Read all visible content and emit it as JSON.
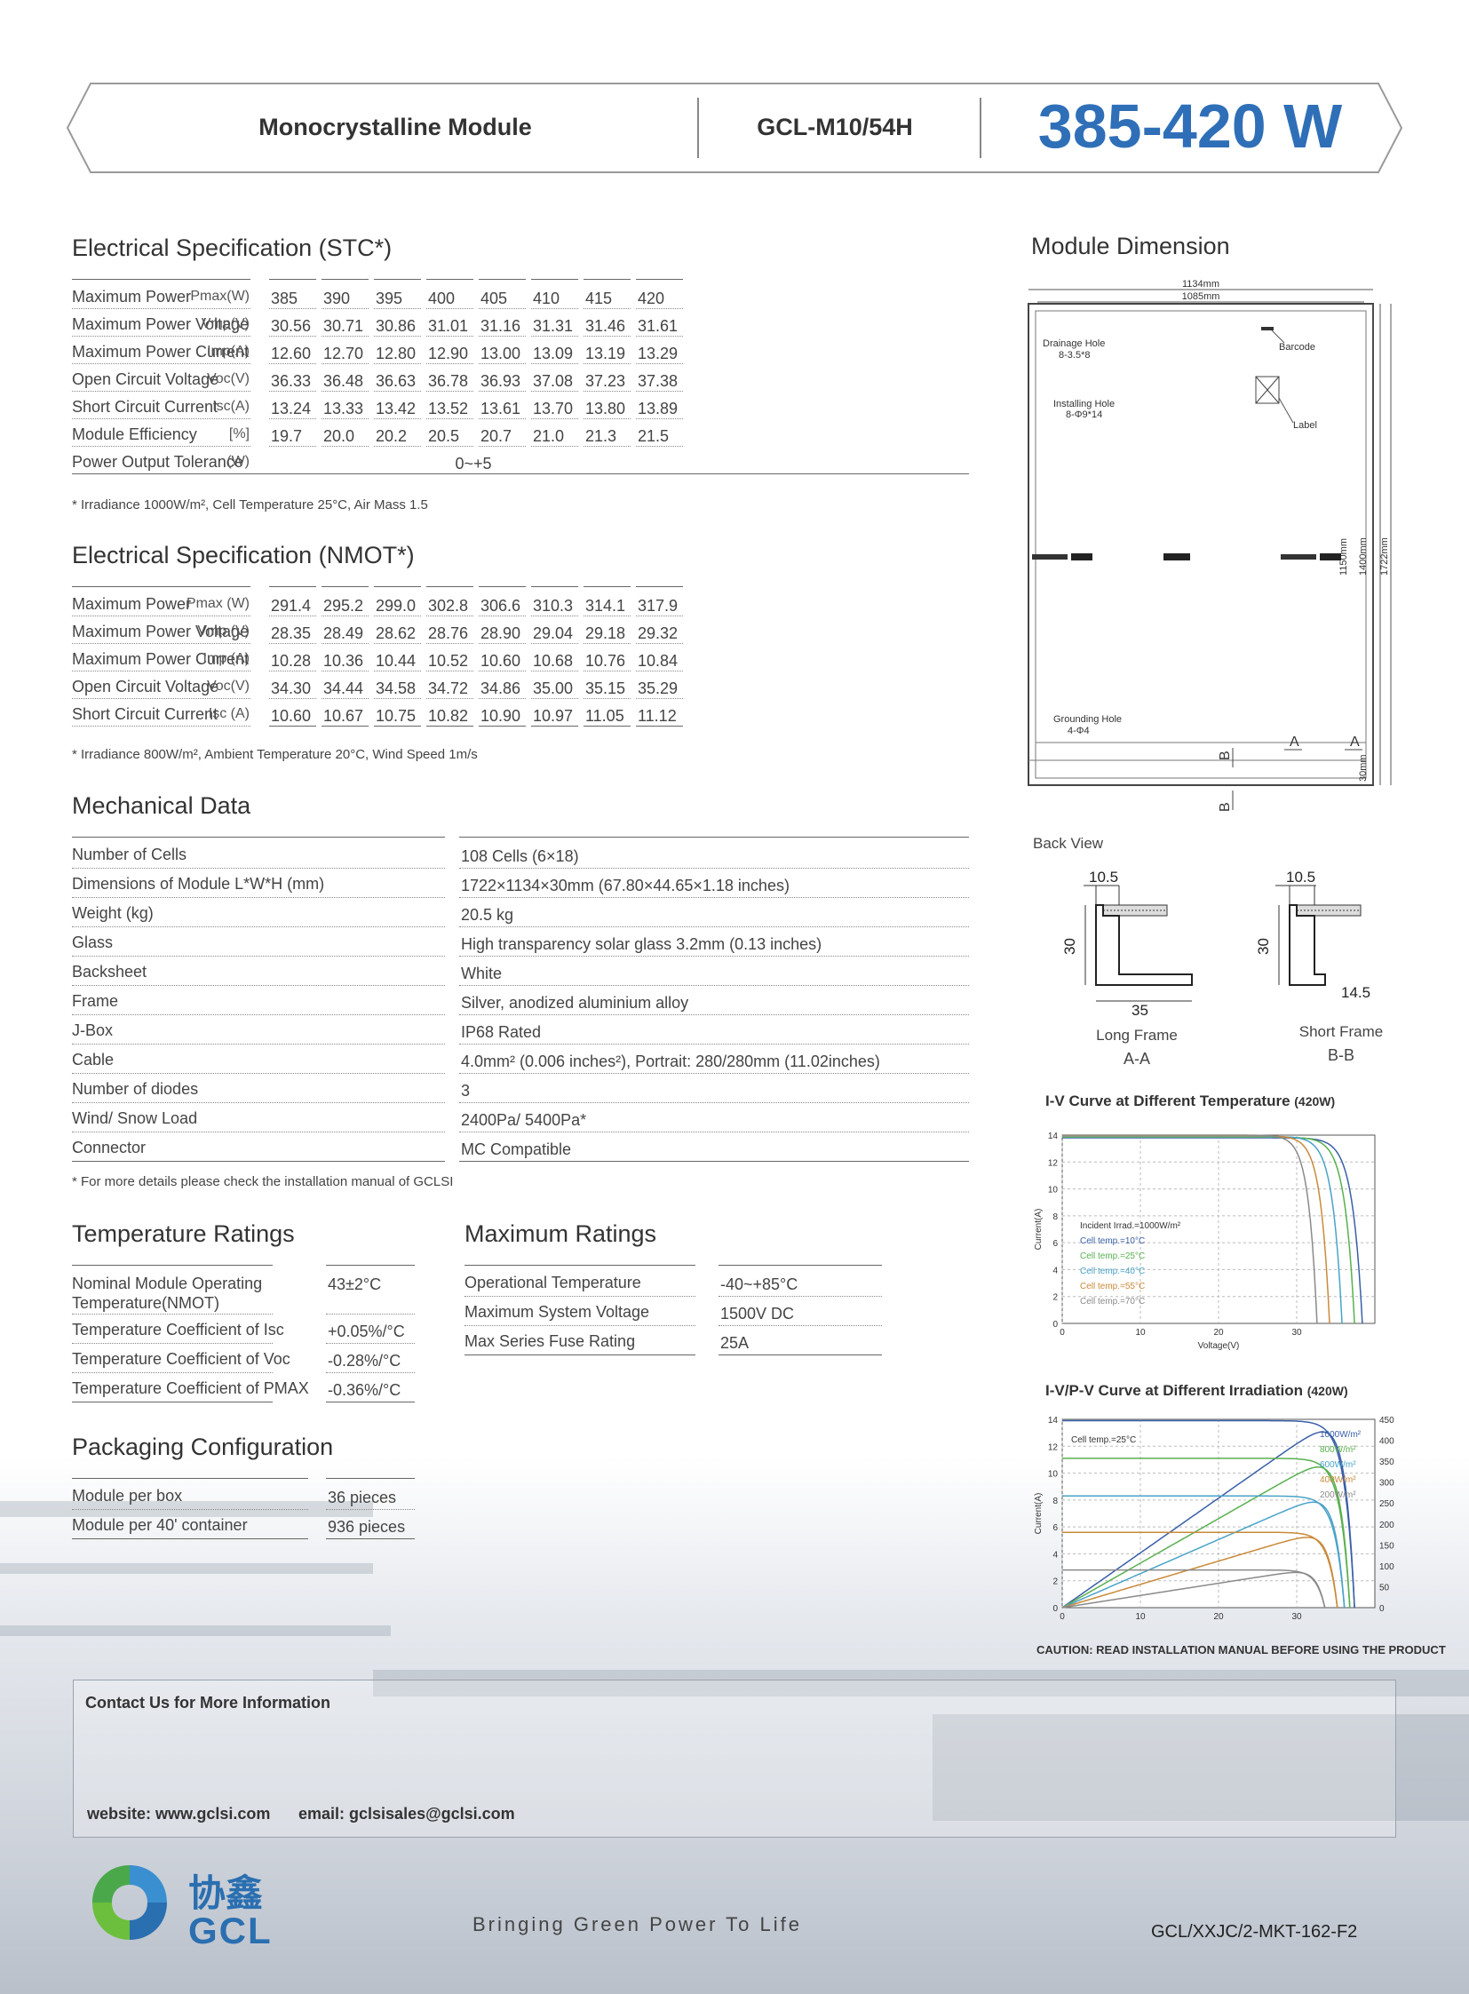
{
  "header": {
    "module_type": "Monocrystalline Module",
    "model": "GCL-M10/54H",
    "power_range": "385-420 W"
  },
  "stc": {
    "title": "Electrical Specification (STC*)",
    "rows": [
      {
        "label": "Maximum Power",
        "unit": "Pmax(W)",
        "values": [
          "385",
          "390",
          "395",
          "400",
          "405",
          "410",
          "415",
          "420"
        ]
      },
      {
        "label": "Maximum Power Voltage",
        "unit": "Vmp(V)",
        "values": [
          "30.56",
          "30.71",
          "30.86",
          "31.01",
          "31.16",
          "31.31",
          "31.46",
          "31.61"
        ]
      },
      {
        "label": "Maximum Power Current",
        "unit": "Imp(A)",
        "values": [
          "12.60",
          "12.70",
          "12.80",
          "12.90",
          "13.00",
          "13.09",
          "13.19",
          "13.29"
        ]
      },
      {
        "label": "Open Circuit Voltage",
        "unit": "Voc(V)",
        "values": [
          "36.33",
          "36.48",
          "36.63",
          "36.78",
          "36.93",
          "37.08",
          "37.23",
          "37.38"
        ]
      },
      {
        "label": "Short Circuit Current",
        "unit": "Isc(A)",
        "values": [
          "13.24",
          "13.33",
          "13.42",
          "13.52",
          "13.61",
          "13.70",
          "13.80",
          "13.89"
        ]
      },
      {
        "label": "Module Efficiency",
        "unit": "[%]",
        "values": [
          "19.7",
          "20.0",
          "20.2",
          "20.5",
          "20.7",
          "21.0",
          "21.3",
          "21.5"
        ]
      }
    ],
    "tolerance": {
      "label": "Power Output Tolerance",
      "unit": "(W)",
      "value": "0~+5"
    },
    "note": "* Irradiance 1000W/m², Cell Temperature 25°C, Air Mass 1.5"
  },
  "nmot": {
    "title": "Electrical Specification (NMOT*)",
    "rows": [
      {
        "label": "Maximum Power",
        "unit": "Pmax (W)",
        "values": [
          "291.4",
          "295.2",
          "299.0",
          "302.8",
          "306.6",
          "310.3",
          "314.1",
          "317.9"
        ]
      },
      {
        "label": "Maximum Power Voltage",
        "unit": "Vmp (V)",
        "values": [
          "28.35",
          "28.49",
          "28.62",
          "28.76",
          "28.90",
          "29.04",
          "29.18",
          "29.32"
        ]
      },
      {
        "label": "Maximum Power Current",
        "unit": "Imp (A)",
        "values": [
          "10.28",
          "10.36",
          "10.44",
          "10.52",
          "10.60",
          "10.68",
          "10.76",
          "10.84"
        ]
      },
      {
        "label": "Open Circuit Voltage",
        "unit": "Voc(V)",
        "values": [
          "34.30",
          "34.44",
          "34.58",
          "34.72",
          "34.86",
          "35.00",
          "35.15",
          "35.29"
        ]
      },
      {
        "label": "Short Circuit Current",
        "unit": "Isc (A)",
        "values": [
          "10.60",
          "10.67",
          "10.75",
          "10.82",
          "10.90",
          "10.97",
          "11.05",
          "11.12"
        ]
      }
    ],
    "note": "* Irradiance 800W/m², Ambient Temperature 20°C, Wind Speed 1m/s"
  },
  "mechanical": {
    "title": "Mechanical Data",
    "rows": [
      {
        "label": "Number of Cells",
        "value": "108 Cells (6×18)"
      },
      {
        "label": "Dimensions of Module L*W*H (mm)",
        "value": "1722×1134×30mm (67.80×44.65×1.18 inches)"
      },
      {
        "label": "Weight (kg)",
        "value": "20.5 kg"
      },
      {
        "label": "Glass",
        "value": "High transparency solar glass 3.2mm (0.13 inches)"
      },
      {
        "label": "Backsheet",
        "value": "White"
      },
      {
        "label": "Frame",
        "value": "Silver, anodized aluminium alloy"
      },
      {
        "label": "J-Box",
        "value": "IP68 Rated"
      },
      {
        "label": "Cable",
        "value": "4.0mm² (0.006 inches²), Portrait: 280/280mm   (11.02inches)"
      },
      {
        "label": "Number of diodes",
        "value": "3"
      },
      {
        "label": "Wind/ Snow Load",
        "value": "2400Pa/ 5400Pa*"
      },
      {
        "label": "Connector",
        "value": "MC Compatible"
      }
    ],
    "note": "* For more details please check the installation manual of GCLSI"
  },
  "temperature": {
    "title": "Temperature Ratings",
    "rows": [
      {
        "label": "Nominal Module Operating Temperature(NMOT)",
        "value": "43±2°C"
      },
      {
        "label": "Temperature Coefficient of Isc",
        "value": "+0.05%/°C"
      },
      {
        "label": "Temperature Coefficient of Voc",
        "value": "-0.28%/°C"
      },
      {
        "label": "Temperature Coefficient of PMAX",
        "value": "-0.36%/°C"
      }
    ]
  },
  "maximum": {
    "title": "Maximum Ratings",
    "rows": [
      {
        "label": "Operational Temperature",
        "value": "-40~+85°C"
      },
      {
        "label": "Maximum System Voltage",
        "value": "1500V DC"
      },
      {
        "label": "Max Series Fuse Rating",
        "value": "25A"
      }
    ]
  },
  "packaging": {
    "title": "Packaging Configuration",
    "rows": [
      {
        "label": "Module per box",
        "value": "36 pieces"
      },
      {
        "label": "Module per 40' container",
        "value": "936 pieces"
      }
    ]
  },
  "dimension": {
    "title": "Module Dimension",
    "w_outer": "1134mm",
    "w_inner": "1085mm",
    "h1": "1150mm",
    "h2": "1400mm",
    "h3": "1722mm",
    "h4": "30mm",
    "drain_l1": "Drainage Hole",
    "drain_l2": "8-3.5*8",
    "barcode": "Barcode",
    "install_l1": "Installing Hole",
    "install_l2": "8-Φ9*14",
    "label": "Label",
    "ground_l1": "Grounding Hole",
    "ground_l2": "4-Φ4",
    "sec_a": "A",
    "sec_b": "B",
    "back_view": "Back View",
    "long_w": "10.5",
    "long_h": "30",
    "long_foot": "35",
    "long_name": "Long Frame",
    "long_sec": "A-A",
    "short_w": "10.5",
    "short_h": "30",
    "short_foot": "14.5",
    "short_name": "Short Frame",
    "short_sec": "B-B"
  },
  "chart_data": [
    {
      "type": "line",
      "title": "I-V Curve at Different Temperature",
      "title_suffix": "(420W)",
      "xlabel": "Voltage(V)",
      "ylabel": "Current(A)",
      "xlim": [
        0,
        40
      ],
      "ylim": [
        0,
        14
      ],
      "xticks": [
        "0",
        "10",
        "20",
        "30"
      ],
      "yticks": [
        "0",
        "2",
        "4",
        "6",
        "8",
        "10",
        "12",
        "14"
      ],
      "annotation": "Incident Irrad.=1000W/m²",
      "series": [
        {
          "name": "Cell temp.=10°C",
          "color": "#3a5fa8",
          "isc": 13.8,
          "voc": 38.4
        },
        {
          "name": "Cell temp.=25°C",
          "color": "#58b04f",
          "isc": 13.85,
          "voc": 37.4
        },
        {
          "name": "Cell temp.=40°C",
          "color": "#4aa3c8",
          "isc": 13.9,
          "voc": 35.8
        },
        {
          "name": "Cell temp.=55°C",
          "color": "#c98a3a",
          "isc": 13.95,
          "voc": 34.2
        },
        {
          "name": "Cell temp.=70°C",
          "color": "#8a8a8a",
          "isc": 14.0,
          "voc": 32.6
        }
      ]
    },
    {
      "type": "line",
      "title": "I-V/P-V Curve at Different Irradiation",
      "title_suffix": "(420W)",
      "ylabel": "Current(A)",
      "xlim": [
        0,
        40
      ],
      "ylim": [
        0,
        14
      ],
      "y2lim": [
        0,
        450
      ],
      "xticks": [
        "0",
        "10",
        "20",
        "30"
      ],
      "yticks": [
        "0",
        "2",
        "4",
        "6",
        "8",
        "10",
        "12",
        "14"
      ],
      "y2ticks": [
        "0",
        "50",
        "100",
        "150",
        "200",
        "250",
        "300",
        "350",
        "400",
        "450"
      ],
      "annotation": "Cell temp.=25°C",
      "series": [
        {
          "name": "1000W/m²",
          "color": "#3a5fa8",
          "isc": 13.9,
          "voc": 37.4,
          "pmax": 420
        },
        {
          "name": "800W/m²",
          "color": "#58b04f",
          "isc": 11.1,
          "voc": 36.8,
          "pmax": 336
        },
        {
          "name": "600W/m²",
          "color": "#4aa3c8",
          "isc": 8.3,
          "voc": 36.1,
          "pmax": 252
        },
        {
          "name": "400W/m²",
          "color": "#c98a3a",
          "isc": 5.6,
          "voc": 35.2,
          "pmax": 168
        },
        {
          "name": "200W/m²",
          "color": "#8a8a8a",
          "isc": 2.8,
          "voc": 33.6,
          "pmax": 84
        }
      ]
    }
  ],
  "caution": "CAUTION: READ INSTALLATION MANUAL BEFORE USING THE PRODUCT",
  "contact": {
    "title": "Contact Us for More Information",
    "website": "website: www.gclsi.com",
    "email": "email: gclsisales@gclsi.com"
  },
  "footer": {
    "logo_cn": "协鑫",
    "logo_en": "GCL",
    "slogan": "Bringing Green Power To Life",
    "doc_code": "GCL/XXJC/2-MKT-162-F2"
  }
}
